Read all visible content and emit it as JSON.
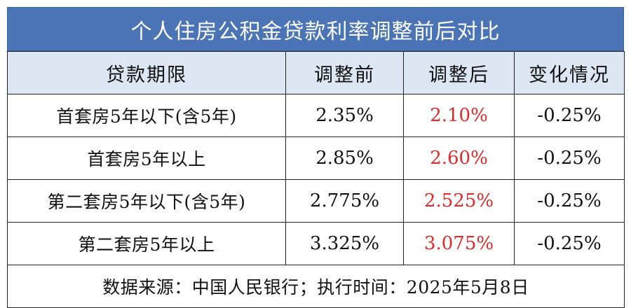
{
  "title": "个人住房公积金贷款利率调整前后对比",
  "colors": {
    "title_bg": "#4a74b5",
    "header_bg": "#dde6f3",
    "highlight": "#e12a2a"
  },
  "headers": [
    "贷款期限",
    "调整前",
    "调整后",
    "变化情况"
  ],
  "rows": [
    {
      "period": "首套房5年以下(含5年)",
      "before": "2.35%",
      "after": "2.10%",
      "change": "-0.25%"
    },
    {
      "period": "首套房5年以上",
      "before": "2.85%",
      "after": "2.60%",
      "change": "-0.25%"
    },
    {
      "period": "第二套房5年以下(含5年)",
      "before": "2.775%",
      "after": "2.525%",
      "change": "-0.25%"
    },
    {
      "period": "第二套房5年以上",
      "before": "3.325%",
      "after": "3.075%",
      "change": "-0.25%"
    }
  ],
  "footer": "数据来源：中国人民银行；执行时间：2025年5月8日"
}
